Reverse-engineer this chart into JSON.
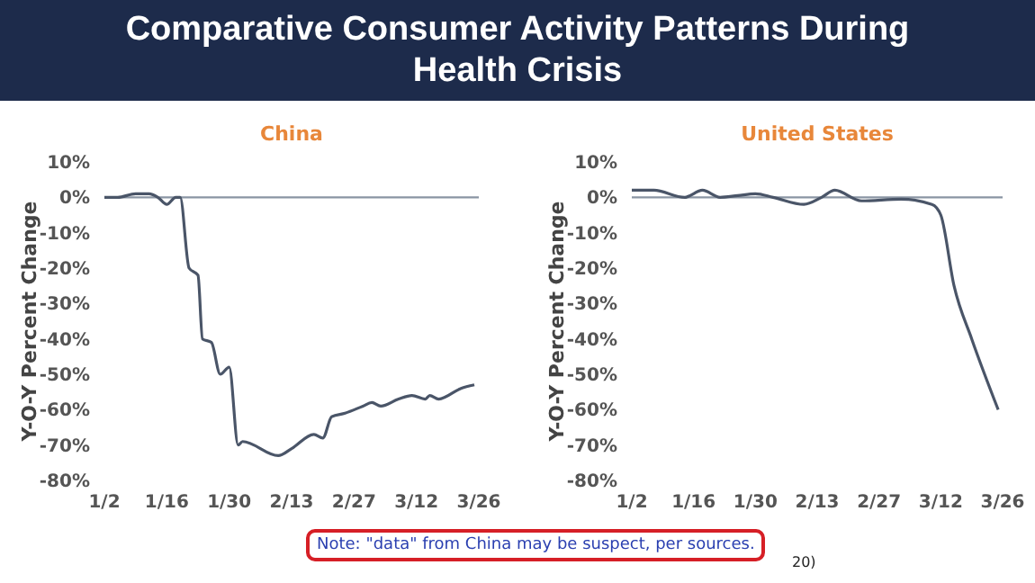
{
  "chart_data": [
    {
      "type": "line",
      "title": "Comparative Consumer Activity Patterns During Health Crisis",
      "subtitle": "China",
      "ylabel": "Y-O-Y Percent Change",
      "x": [
        "--01-02",
        "--01-05",
        "--01-09",
        "--01-12",
        "--01-14",
        "--01-16",
        "--01-18",
        "--01-19",
        "--01-21",
        "--01-23",
        "--01-24",
        "--01-26",
        "--01-28",
        "--01-30",
        "--02-01",
        "--02-02",
        "--02-10",
        "--02-13",
        "--02-18",
        "--02-20",
        "--02-22",
        "--02-25",
        "--02-29",
        "--03-02",
        "--03-04",
        "--03-08",
        "--03-11",
        "--03-14",
        "--03-15",
        "--03-17",
        "--03-22",
        "--03-25"
      ],
      "series": [
        {
          "color": "#4a5568",
          "values": [
            0,
            0,
            1,
            1,
            0,
            -2,
            0,
            0,
            -20,
            -22,
            -40,
            -41,
            -50,
            -48,
            -70,
            -69,
            -73,
            -71,
            -67,
            -68,
            -62,
            -61,
            -59,
            -58,
            -59,
            -57,
            -56,
            -57,
            -56,
            -57,
            -54,
            -53
          ]
        }
      ],
      "xlim": [
        "--01-02",
        "--03-26"
      ],
      "xticks": [
        {
          "value": "--01-02",
          "label": "1/2"
        },
        {
          "value": "--01-16",
          "label": "1/16"
        },
        {
          "value": "--01-30",
          "label": "1/30"
        },
        {
          "value": "--02-13",
          "label": "2/13"
        },
        {
          "value": "--02-27",
          "label": "2/27"
        },
        {
          "value": "--03-12",
          "label": "3/12"
        },
        {
          "value": "--03-26",
          "label": "3/26"
        }
      ],
      "ylim": [
        -80,
        10
      ],
      "yticks": [
        {
          "value": -80,
          "label": "-80%"
        },
        {
          "value": -70,
          "label": "-70%"
        },
        {
          "value": -60,
          "label": "-60%"
        },
        {
          "value": -50,
          "label": "-50%"
        },
        {
          "value": -40,
          "label": "-40%"
        },
        {
          "value": -30,
          "label": "-30%"
        },
        {
          "value": -20,
          "label": "-20%"
        },
        {
          "value": -10,
          "label": "-10%"
        },
        {
          "value": 0,
          "label": "0%"
        },
        {
          "value": 10,
          "label": "10%"
        }
      ],
      "ref_lines": [
        {
          "axis": "y",
          "value": 0,
          "color": "#8a95a3"
        }
      ],
      "annotations": [
        "Note: \"data\" from China may be suspect, per sources."
      ]
    },
    {
      "type": "line",
      "subtitle": "United States",
      "ylabel": "Y-O-Y Percent Change",
      "x": [
        "--01-02",
        "--01-07",
        "--01-14",
        "--01-18",
        "--01-22",
        "--01-26",
        "--01-30",
        "--02-03",
        "--02-10",
        "--02-14",
        "--02-17",
        "--02-23",
        "--03-03",
        "--03-10",
        "--03-12",
        "--03-15",
        "--03-19",
        "--03-25"
      ],
      "series": [
        {
          "color": "#4a5568",
          "values": [
            2,
            2,
            0,
            2,
            0,
            0.5,
            1,
            0,
            -2,
            0,
            2,
            -1,
            -0.5,
            -2,
            -5,
            -25,
            -40,
            -60
          ]
        }
      ],
      "xlim": [
        "--01-02",
        "--03-26"
      ],
      "xticks": [
        {
          "value": "--01-02",
          "label": "1/2"
        },
        {
          "value": "--01-16",
          "label": "1/16"
        },
        {
          "value": "--01-30",
          "label": "1/30"
        },
        {
          "value": "--02-13",
          "label": "2/13"
        },
        {
          "value": "--02-27",
          "label": "2/27"
        },
        {
          "value": "--03-12",
          "label": "3/12"
        },
        {
          "value": "--03-26",
          "label": "3/26"
        }
      ],
      "ylim": [
        -80,
        10
      ],
      "yticks": [
        {
          "value": -80,
          "label": "-80%"
        },
        {
          "value": -70,
          "label": "-70%"
        },
        {
          "value": -60,
          "label": "-60%"
        },
        {
          "value": -50,
          "label": "-50%"
        },
        {
          "value": -40,
          "label": "-40%"
        },
        {
          "value": -30,
          "label": "-30%"
        },
        {
          "value": -20,
          "label": "-20%"
        },
        {
          "value": -10,
          "label": "-10%"
        },
        {
          "value": 0,
          "label": "0%"
        },
        {
          "value": 10,
          "label": "10%"
        }
      ],
      "ref_lines": [
        {
          "axis": "y",
          "value": 0,
          "color": "#8a95a3"
        }
      ],
      "annotations": [
        "20)"
      ]
    }
  ]
}
